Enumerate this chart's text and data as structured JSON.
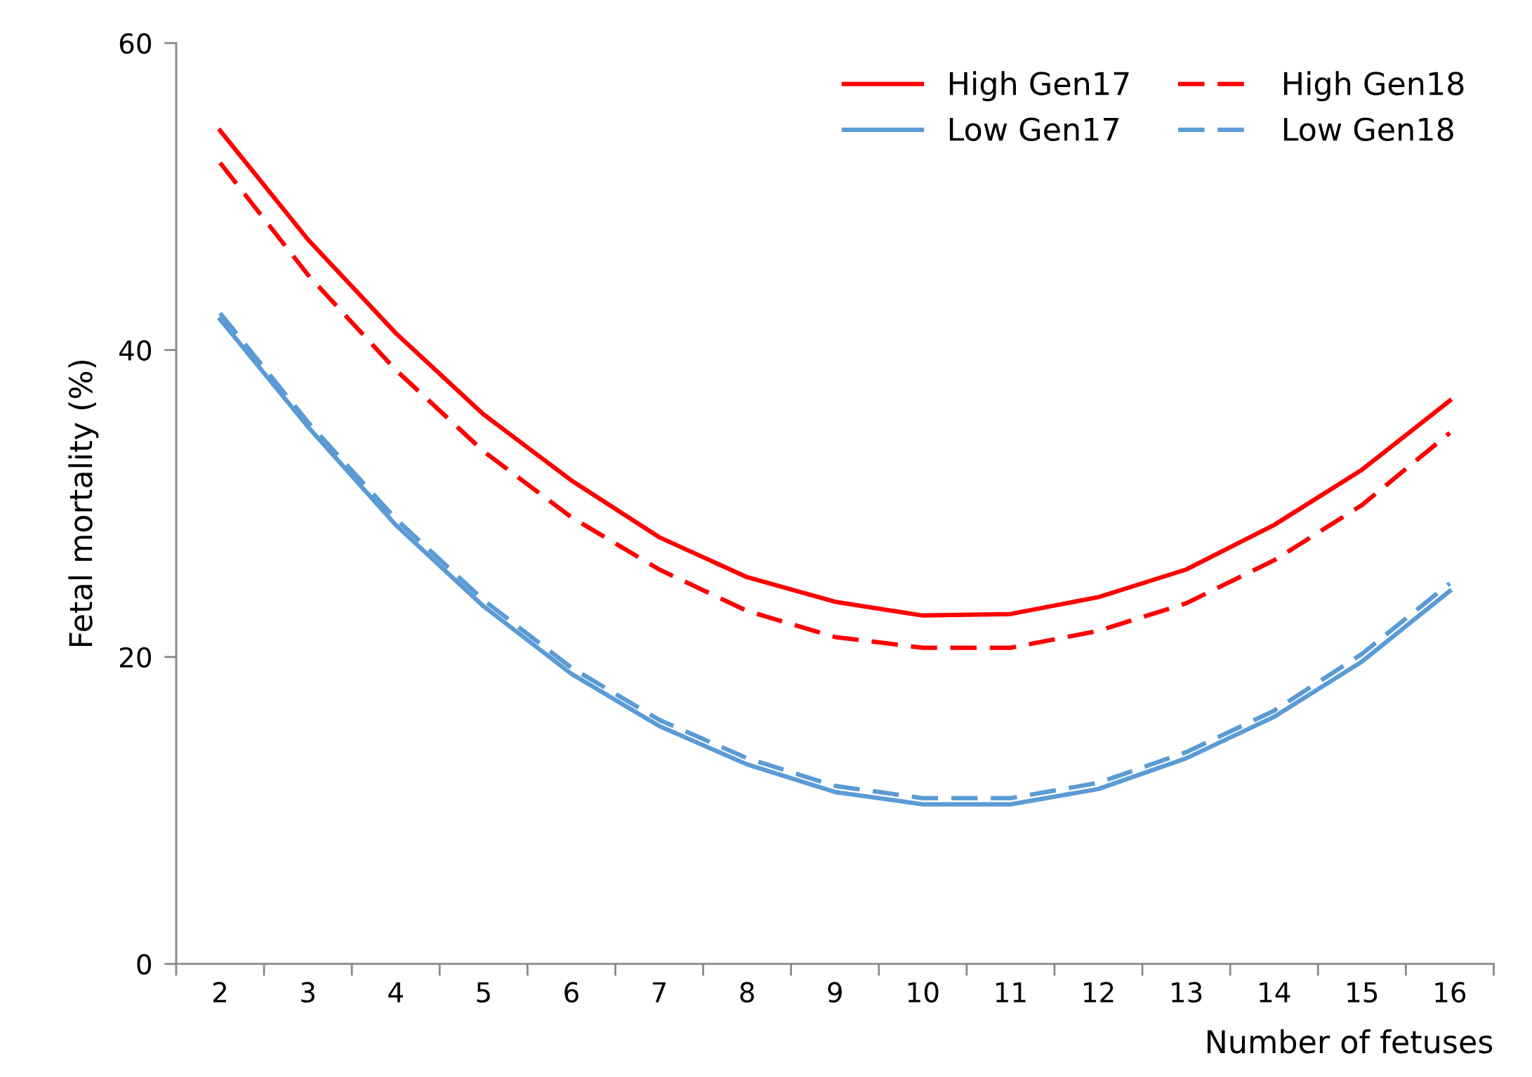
{
  "chart_data": {
    "type": "line",
    "xlabel": "Number of fetuses",
    "ylabel": "Fetal mortality (%)",
    "categories": [
      "2",
      "3",
      "4",
      "5",
      "6",
      "7",
      "8",
      "9",
      "10",
      "11",
      "12",
      "13",
      "14",
      "15",
      "16"
    ],
    "series": [
      {
        "name": "High Gen17",
        "color": "#ff0000",
        "line_style": "solid",
        "values": [
          54.3,
          47.2,
          41.1,
          35.8,
          31.5,
          27.8,
          25.2,
          23.6,
          22.7,
          22.8,
          23.9,
          25.7,
          28.6,
          32.2,
          36.7
        ]
      },
      {
        "name": "High Gen18",
        "color": "#ff0000",
        "line_style": "dashed",
        "values": [
          52.2,
          44.9,
          38.7,
          33.4,
          29.1,
          25.7,
          23.0,
          21.3,
          20.6,
          20.6,
          21.7,
          23.5,
          26.3,
          29.9,
          34.6
        ]
      },
      {
        "name": "Low Gen17",
        "color": "#5b9bd5",
        "line_style": "solid",
        "values": [
          42.0,
          35.0,
          28.6,
          23.3,
          18.9,
          15.5,
          13.0,
          11.2,
          10.4,
          10.4,
          11.4,
          13.4,
          16.1,
          19.7,
          24.3
        ]
      },
      {
        "name": "Low Gen18",
        "color": "#5b9bd5",
        "line_style": "dashed",
        "values": [
          42.4,
          35.3,
          29.0,
          23.7,
          19.3,
          15.9,
          13.4,
          11.6,
          10.8,
          10.8,
          11.8,
          13.8,
          16.5,
          20.2,
          24.8
        ]
      }
    ],
    "ylim": [
      0,
      60
    ],
    "yticks": [
      0,
      20,
      40,
      60
    ],
    "grid": false,
    "legend": "top right",
    "marker": "none"
  }
}
